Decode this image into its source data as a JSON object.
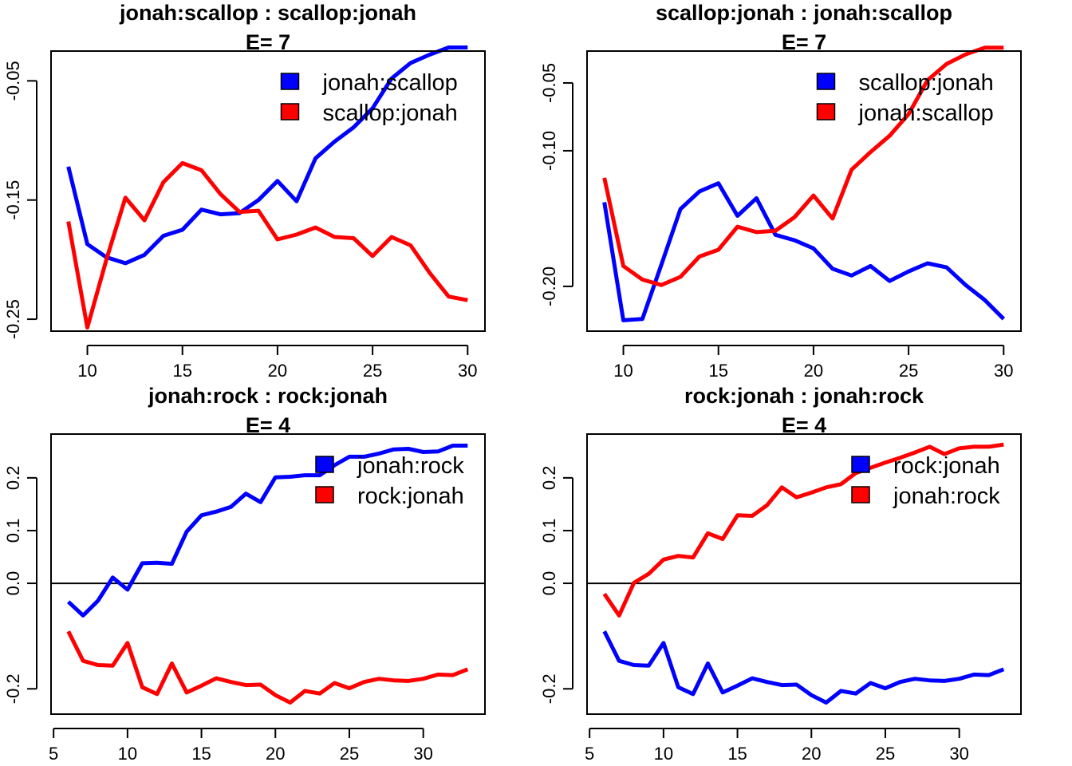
{
  "chart_data": [
    {
      "type": "line",
      "title": "jonah:scallop  :  scallop:jonah",
      "subtitle": "E= 7",
      "xlim": [
        9,
        30
      ],
      "ylim": [
        -0.26,
        -0.025
      ],
      "xticks": [
        10,
        15,
        20,
        25,
        30
      ],
      "yticks": [
        -0.05,
        -0.15,
        -0.25
      ],
      "ytick_labels": [
        "-0.05",
        "-0.15",
        "-0.25"
      ],
      "zero_line": false,
      "legend_position": "top-right",
      "x": [
        9,
        10,
        11,
        12,
        13,
        14,
        15,
        16,
        17,
        18,
        19,
        20,
        21,
        22,
        23,
        24,
        25,
        26,
        27,
        28,
        29,
        30
      ],
      "series": [
        {
          "name": "jonah:scallop",
          "color": "#0000FF",
          "values": [
            -0.122,
            -0.187,
            -0.198,
            -0.203,
            -0.196,
            -0.18,
            -0.175,
            -0.158,
            -0.162,
            -0.161,
            -0.15,
            -0.134,
            -0.151,
            -0.115,
            -0.101,
            -0.089,
            -0.073,
            -0.048,
            -0.035,
            -0.028,
            -0.022,
            -0.022
          ]
        },
        {
          "name": "scallop:jonah",
          "color": "#FF0000",
          "values": [
            -0.168,
            -0.257,
            -0.2,
            -0.148,
            -0.167,
            -0.135,
            -0.119,
            -0.125,
            -0.145,
            -0.16,
            -0.159,
            -0.183,
            -0.179,
            -0.173,
            -0.181,
            -0.182,
            -0.197,
            -0.181,
            -0.188,
            -0.211,
            -0.231,
            -0.234
          ]
        }
      ]
    },
    {
      "type": "line",
      "title": "scallop:jonah  :  jonah:scallop",
      "subtitle": "E= 7",
      "xlim": [
        9,
        30
      ],
      "ylim": [
        -0.233,
        -0.0265
      ],
      "xticks": [
        10,
        15,
        20,
        25,
        30
      ],
      "yticks": [
        -0.05,
        -0.1,
        -0.2
      ],
      "ytick_labels": [
        "-0.05",
        "-0.10",
        "-0.20"
      ],
      "zero_line": false,
      "legend_position": "top-right",
      "x": [
        9,
        10,
        11,
        12,
        13,
        14,
        15,
        16,
        17,
        18,
        19,
        20,
        21,
        22,
        23,
        24,
        25,
        26,
        27,
        28,
        29,
        30
      ],
      "series": [
        {
          "name": "scallop:jonah",
          "color": "#0000FF",
          "values": [
            -0.138,
            -0.225,
            -0.224,
            -0.184,
            -0.143,
            -0.13,
            -0.124,
            -0.148,
            -0.135,
            -0.162,
            -0.166,
            -0.172,
            -0.187,
            -0.192,
            -0.185,
            -0.196,
            -0.189,
            -0.183,
            -0.186,
            -0.199,
            -0.21,
            -0.224
          ]
        },
        {
          "name": "jonah:scallop",
          "color": "#FF0000",
          "values": [
            -0.12,
            -0.185,
            -0.195,
            -0.199,
            -0.193,
            -0.178,
            -0.173,
            -0.156,
            -0.16,
            -0.159,
            -0.149,
            -0.133,
            -0.15,
            -0.114,
            -0.101,
            -0.089,
            -0.073,
            -0.048,
            -0.036,
            -0.029,
            -0.024,
            -0.024
          ]
        }
      ]
    },
    {
      "type": "line",
      "title": "jonah:rock  :  rock:jonah",
      "subtitle": "E= 4",
      "xlim": [
        6,
        33
      ],
      "ylim": [
        -0.248,
        0.283
      ],
      "xticks": [
        5,
        10,
        15,
        20,
        25,
        30
      ],
      "yticks": [
        0.2,
        0.1,
        0.0,
        -0.2
      ],
      "ytick_labels": [
        "0.2",
        "0.1",
        "0.0",
        "-0.2"
      ],
      "zero_line": true,
      "legend_position": "top-right",
      "x": [
        6,
        7,
        8,
        9,
        10,
        11,
        12,
        13,
        14,
        15,
        16,
        17,
        18,
        19,
        20,
        21,
        22,
        23,
        24,
        25,
        26,
        27,
        28,
        29,
        30,
        31,
        32,
        33
      ],
      "series": [
        {
          "name": "jonah:rock",
          "color": "#0000FF",
          "values": [
            -0.035,
            -0.061,
            -0.033,
            0.011,
            -0.012,
            0.038,
            0.039,
            0.037,
            0.098,
            0.129,
            0.136,
            0.145,
            0.17,
            0.154,
            0.201,
            0.202,
            0.205,
            0.205,
            0.224,
            0.24,
            0.24,
            0.246,
            0.254,
            0.255,
            0.249,
            0.25,
            0.261,
            0.261
          ]
        },
        {
          "name": "rock:jonah",
          "color": "#FF0000",
          "values": [
            -0.091,
            -0.147,
            -0.155,
            -0.156,
            -0.113,
            -0.197,
            -0.21,
            -0.152,
            -0.207,
            -0.194,
            -0.18,
            -0.187,
            -0.193,
            -0.192,
            -0.212,
            -0.226,
            -0.204,
            -0.209,
            -0.189,
            -0.199,
            -0.187,
            -0.181,
            -0.184,
            -0.185,
            -0.181,
            -0.173,
            -0.174,
            -0.163
          ]
        }
      ]
    },
    {
      "type": "line",
      "title": "rock:jonah  :  jonah:rock",
      "subtitle": "E= 4",
      "xlim": [
        6,
        33
      ],
      "ylim": [
        -0.248,
        0.283
      ],
      "xticks": [
        5,
        10,
        15,
        20,
        25,
        30
      ],
      "yticks": [
        0.2,
        0.1,
        0.0,
        -0.2
      ],
      "ytick_labels": [
        "0.2",
        "0.1",
        "0.0",
        "-0.2"
      ],
      "zero_line": true,
      "legend_position": "top-right",
      "x": [
        6,
        7,
        8,
        9,
        10,
        11,
        12,
        13,
        14,
        15,
        16,
        17,
        18,
        19,
        20,
        21,
        22,
        23,
        24,
        25,
        26,
        27,
        28,
        29,
        30,
        31,
        32,
        33
      ],
      "series": [
        {
          "name": "rock:jonah",
          "color": "#0000FF",
          "values": [
            -0.091,
            -0.147,
            -0.155,
            -0.156,
            -0.113,
            -0.197,
            -0.21,
            -0.152,
            -0.207,
            -0.194,
            -0.18,
            -0.187,
            -0.193,
            -0.192,
            -0.212,
            -0.226,
            -0.204,
            -0.209,
            -0.189,
            -0.199,
            -0.187,
            -0.181,
            -0.184,
            -0.185,
            -0.181,
            -0.173,
            -0.174,
            -0.163
          ]
        },
        {
          "name": "jonah:rock",
          "color": "#FF0000",
          "values": [
            -0.02,
            -0.061,
            0.001,
            0.018,
            0.045,
            0.052,
            0.049,
            0.095,
            0.084,
            0.129,
            0.128,
            0.148,
            0.182,
            0.163,
            0.172,
            0.182,
            0.188,
            0.209,
            0.219,
            0.229,
            0.238,
            0.248,
            0.259,
            0.245,
            0.256,
            0.259,
            0.259,
            0.263
          ]
        }
      ]
    }
  ]
}
